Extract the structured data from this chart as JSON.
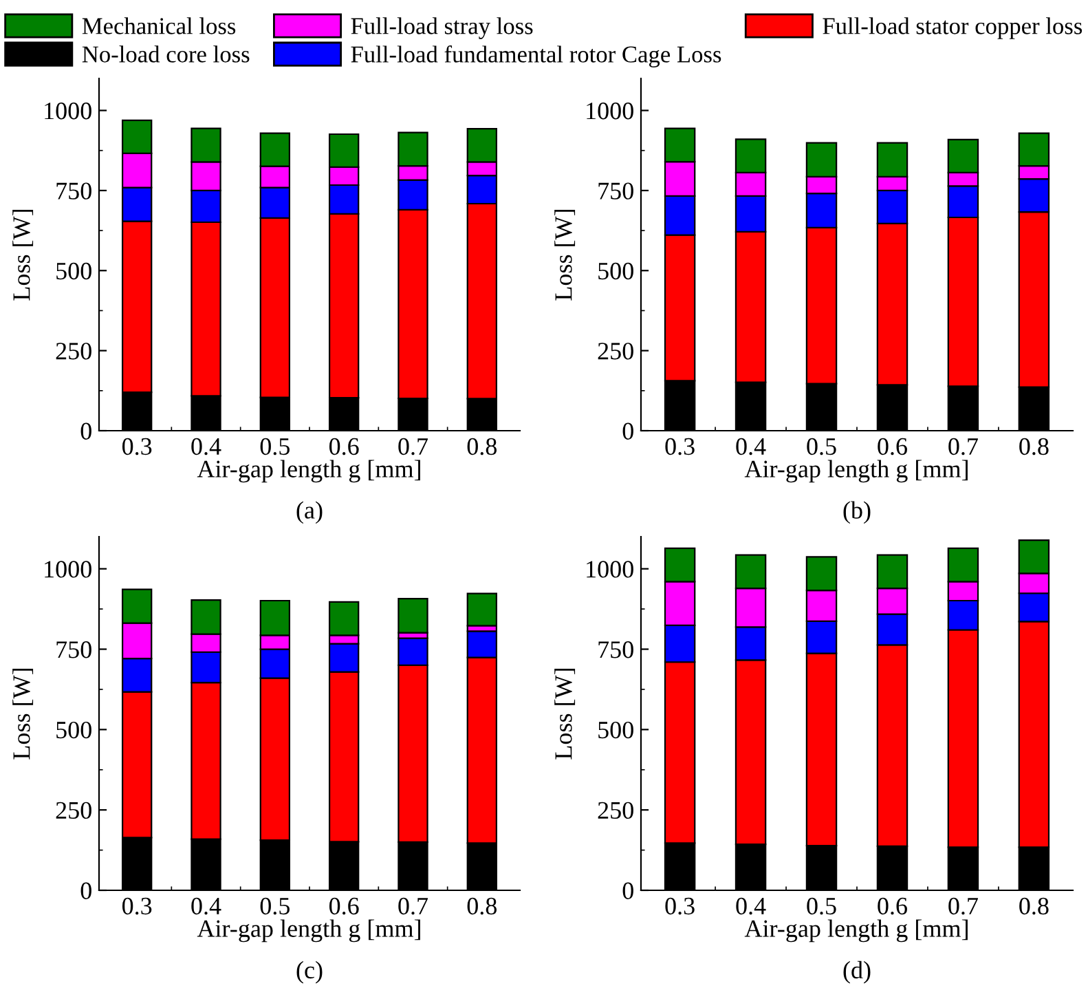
{
  "chart_data": [
    {
      "type": "bar",
      "stacked": true,
      "categories": [
        "0.3",
        "0.4",
        "0.5",
        "0.6",
        "0.7",
        "0.8"
      ],
      "xlabel": "Air-gap length g [mm]",
      "ylabel": "Loss [W]",
      "ylim": [
        0,
        1100
      ],
      "yticks": [
        0,
        250,
        500,
        750,
        1000
      ],
      "grid": false,
      "legend": "top",
      "annotations": [
        "(a)"
      ],
      "series": [
        {
          "name": "No-load core loss",
          "color": "#000000",
          "values": [
            120,
            109,
            104,
            103,
            101,
            100
          ]
        },
        {
          "name": "Full-load stator copper loss",
          "color": "#ff0000",
          "values": [
            534,
            542,
            560,
            574,
            589,
            609
          ]
        },
        {
          "name": "Full-load fundamental rotor Cage Loss",
          "color": "#0000ff",
          "values": [
            105,
            99,
            95,
            90,
            93,
            88
          ]
        },
        {
          "name": "Full-load stray loss",
          "color": "#ff00ff",
          "values": [
            107,
            89,
            67,
            56,
            44,
            42
          ]
        },
        {
          "name": "Mechanical loss",
          "color": "#008000",
          "values": [
            103,
            105,
            103,
            103,
            104,
            104
          ]
        }
      ]
    },
    {
      "type": "bar",
      "stacked": true,
      "categories": [
        "0.3",
        "0.4",
        "0.5",
        "0.6",
        "0.7",
        "0.8"
      ],
      "xlabel": "Air-gap length g [mm]",
      "ylabel": "Loss [W]",
      "ylim": [
        0,
        1100
      ],
      "yticks": [
        0,
        250,
        500,
        750,
        1000
      ],
      "grid": false,
      "annotations": [
        "(b)"
      ],
      "series": [
        {
          "color": "#000000",
          "values": [
            156,
            151,
            147,
            143,
            139,
            136
          ]
        },
        {
          "color": "#ff0000",
          "values": [
            455,
            470,
            487,
            504,
            527,
            547
          ]
        },
        {
          "color": "#0000ff",
          "values": [
            122,
            112,
            107,
            103,
            98,
            103
          ]
        },
        {
          "color": "#ff00ff",
          "values": [
            107,
            73,
            52,
            43,
            42,
            41
          ]
        },
        {
          "color": "#008000",
          "values": [
            104,
            104,
            106,
            106,
            103,
            102
          ]
        }
      ]
    },
    {
      "type": "bar",
      "stacked": true,
      "categories": [
        "0.3",
        "0.4",
        "0.5",
        "0.6",
        "0.7",
        "0.8"
      ],
      "xlabel": "Air-gap length g [mm]",
      "ylabel": "Loss [W]",
      "ylim": [
        0,
        1100
      ],
      "yticks": [
        0,
        250,
        500,
        750,
        1000
      ],
      "grid": false,
      "annotations": [
        "(c)"
      ],
      "series": [
        {
          "color": "#000000",
          "values": [
            164,
            159,
            156,
            151,
            150,
            147
          ]
        },
        {
          "color": "#ff0000",
          "values": [
            453,
            487,
            504,
            528,
            550,
            577
          ]
        },
        {
          "color": "#0000ff",
          "values": [
            104,
            95,
            90,
            88,
            84,
            82
          ]
        },
        {
          "color": "#ff00ff",
          "values": [
            110,
            56,
            43,
            26,
            17,
            17
          ]
        },
        {
          "color": "#008000",
          "values": [
            105,
            106,
            108,
            104,
            106,
            100
          ]
        }
      ]
    },
    {
      "type": "bar",
      "stacked": true,
      "categories": [
        "0.3",
        "0.4",
        "0.5",
        "0.6",
        "0.7",
        "0.8"
      ],
      "xlabel": "Air-gap length g [mm]",
      "ylabel": "Loss [W]",
      "ylim": [
        0,
        1100
      ],
      "yticks": [
        0,
        250,
        500,
        750,
        1000
      ],
      "grid": false,
      "annotations": [
        "(d)"
      ],
      "series": [
        {
          "color": "#000000",
          "values": [
            147,
            143,
            139,
            137,
            134,
            134
          ]
        },
        {
          "color": "#ff0000",
          "values": [
            563,
            573,
            598,
            626,
            676,
            702
          ]
        },
        {
          "color": "#0000ff",
          "values": [
            114,
            103,
            100,
            96,
            91,
            88
          ]
        },
        {
          "color": "#ff00ff",
          "values": [
            136,
            120,
            96,
            80,
            59,
            62
          ]
        },
        {
          "color": "#008000",
          "values": [
            104,
            104,
            104,
            104,
            104,
            103
          ]
        }
      ]
    }
  ]
}
